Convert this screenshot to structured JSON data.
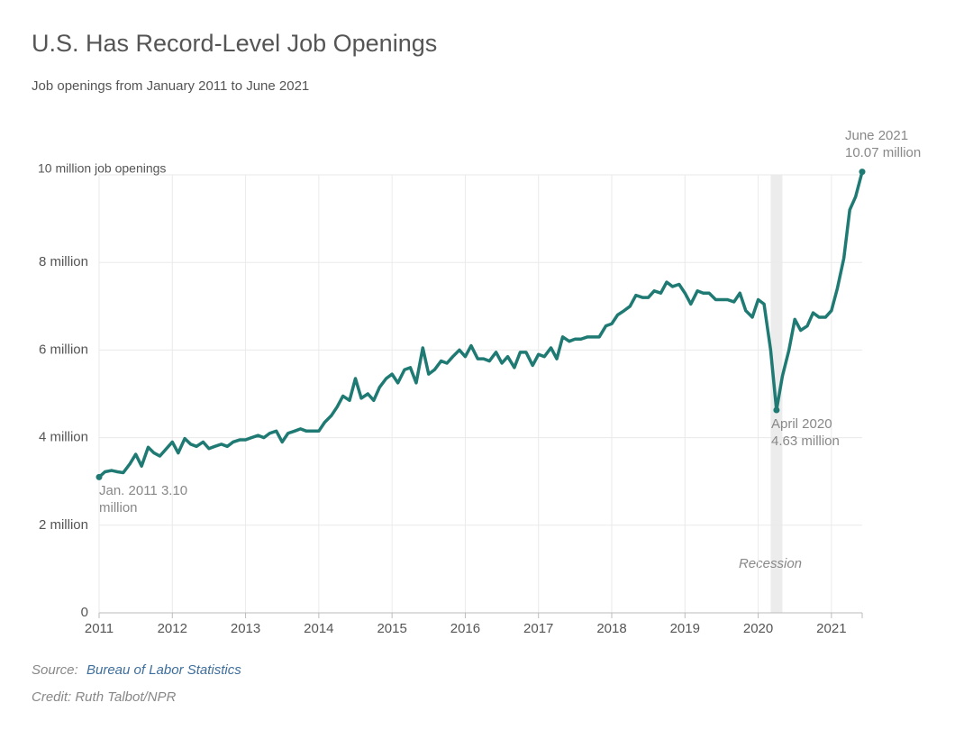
{
  "chart_data": {
    "type": "line",
    "title": "U.S. Has Record-Level Job Openings",
    "subtitle": "Job openings from January 2011 to June 2021",
    "x": [
      2011.0,
      2011.08,
      2011.17,
      2011.25,
      2011.33,
      2011.42,
      2011.5,
      2011.58,
      2011.67,
      2011.75,
      2011.83,
      2011.92,
      2012.0,
      2012.08,
      2012.17,
      2012.25,
      2012.33,
      2012.42,
      2012.5,
      2012.58,
      2012.67,
      2012.75,
      2012.83,
      2012.92,
      2013.0,
      2013.08,
      2013.17,
      2013.25,
      2013.33,
      2013.42,
      2013.5,
      2013.58,
      2013.67,
      2013.75,
      2013.83,
      2013.92,
      2014.0,
      2014.08,
      2014.17,
      2014.25,
      2014.33,
      2014.42,
      2014.5,
      2014.58,
      2014.67,
      2014.75,
      2014.83,
      2014.92,
      2015.0,
      2015.08,
      2015.17,
      2015.25,
      2015.33,
      2015.42,
      2015.5,
      2015.58,
      2015.67,
      2015.75,
      2015.83,
      2015.92,
      2016.0,
      2016.08,
      2016.17,
      2016.25,
      2016.33,
      2016.42,
      2016.5,
      2016.58,
      2016.67,
      2016.75,
      2016.83,
      2016.92,
      2017.0,
      2017.08,
      2017.17,
      2017.25,
      2017.33,
      2017.42,
      2017.5,
      2017.58,
      2017.67,
      2017.75,
      2017.83,
      2017.92,
      2018.0,
      2018.08,
      2018.17,
      2018.25,
      2018.33,
      2018.42,
      2018.5,
      2018.58,
      2018.67,
      2018.75,
      2018.83,
      2018.92,
      2019.0,
      2019.08,
      2019.17,
      2019.25,
      2019.33,
      2019.42,
      2019.5,
      2019.58,
      2019.67,
      2019.75,
      2019.83,
      2019.92,
      2020.0,
      2020.08,
      2020.17,
      2020.25,
      2020.33,
      2020.42,
      2020.5,
      2020.58,
      2020.67,
      2020.75,
      2020.83,
      2020.92,
      2021.0,
      2021.08,
      2021.17,
      2021.25,
      2021.33,
      2021.42
    ],
    "series": [
      {
        "name": "Job openings",
        "color": "#1f7a74",
        "values": [
          3.1,
          3.22,
          3.25,
          3.22,
          3.2,
          3.4,
          3.62,
          3.35,
          3.78,
          3.65,
          3.58,
          3.75,
          3.9,
          3.65,
          3.98,
          3.85,
          3.8,
          3.9,
          3.75,
          3.8,
          3.85,
          3.8,
          3.9,
          3.95,
          3.95,
          4.0,
          4.05,
          4.0,
          4.1,
          4.15,
          3.9,
          4.1,
          4.15,
          4.2,
          4.15,
          4.15,
          4.15,
          4.35,
          4.5,
          4.7,
          4.95,
          4.85,
          5.35,
          4.9,
          5.0,
          4.85,
          5.15,
          5.35,
          5.45,
          5.25,
          5.55,
          5.6,
          5.25,
          6.05,
          5.45,
          5.55,
          5.75,
          5.7,
          5.85,
          6.0,
          5.85,
          6.1,
          5.8,
          5.8,
          5.75,
          5.95,
          5.7,
          5.85,
          5.6,
          5.95,
          5.95,
          5.65,
          5.9,
          5.85,
          6.05,
          5.8,
          6.3,
          6.2,
          6.25,
          6.25,
          6.3,
          6.3,
          6.3,
          6.55,
          6.6,
          6.8,
          6.9,
          7.0,
          7.25,
          7.2,
          7.2,
          7.35,
          7.3,
          7.55,
          7.45,
          7.5,
          7.3,
          7.05,
          7.35,
          7.3,
          7.3,
          7.15,
          7.15,
          7.15,
          7.1,
          7.3,
          6.9,
          6.75,
          7.15,
          7.05,
          6.0,
          4.63,
          5.4,
          6.0,
          6.7,
          6.45,
          6.55,
          6.85,
          6.75,
          6.75,
          6.9,
          7.4,
          8.1,
          9.2,
          9.5,
          10.07
        ]
      }
    ],
    "xlim": [
      2011,
      2021.42
    ],
    "xticks": [
      2011,
      2012,
      2013,
      2014,
      2015,
      2016,
      2017,
      2018,
      2019,
      2020,
      2021
    ],
    "ylim": [
      0,
      10
    ],
    "yticks": [
      0,
      {
        "value": 2,
        "label": "2 million"
      },
      {
        "value": 4,
        "label": "4 million"
      },
      {
        "value": 6,
        "label": "6 million"
      },
      {
        "value": 8,
        "label": "8 million"
      },
      {
        "value": 10,
        "label": "10 million job openings"
      }
    ],
    "grid": true,
    "shading": {
      "x": [
        2020.17,
        2020.33
      ],
      "label": "Recession",
      "color": "#ececec"
    },
    "annotations": [
      [
        "Jan. 2011 3.10",
        "million"
      ],
      [
        "April 2020",
        "4.63 million"
      ],
      [
        "June 2021",
        "10.07 million"
      ]
    ],
    "source_label": "Source:",
    "source": "Bureau of Labor Statistics",
    "credit": "Credit: Ruth Talbot/NPR"
  }
}
